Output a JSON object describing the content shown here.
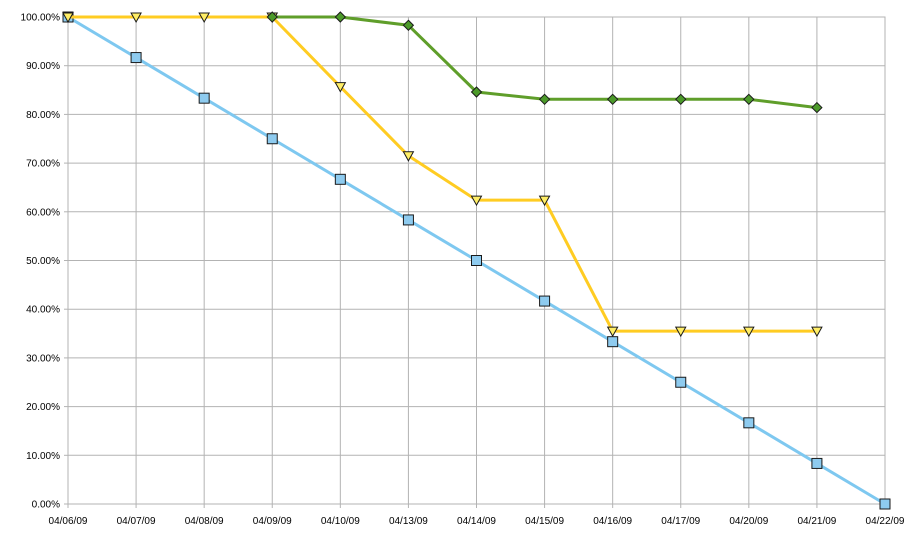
{
  "chart_data": {
    "type": "line",
    "title": "",
    "xlabel": "",
    "ylabel": "",
    "ylim": [
      0,
      100
    ],
    "y_ticks": [
      "0.00%",
      "10.00%",
      "20.00%",
      "30.00%",
      "40.00%",
      "50.00%",
      "60.00%",
      "70.00%",
      "80.00%",
      "90.00%",
      "100.00%"
    ],
    "categories": [
      "04/06/09",
      "04/07/09",
      "04/08/09",
      "04/09/09",
      "04/10/09",
      "04/13/09",
      "04/14/09",
      "04/15/09",
      "04/16/09",
      "04/17/09",
      "04/20/09",
      "04/21/09",
      "04/22/09"
    ],
    "grid": true,
    "legend": "none",
    "series": [
      {
        "color": "#7ec8f0",
        "marker": "square",
        "marker_fill": "#8ecbef",
        "values": [
          100,
          91.67,
          83.33,
          75,
          66.67,
          58.33,
          50,
          41.67,
          33.33,
          25,
          16.67,
          8.33,
          0
        ]
      },
      {
        "color": "#ffcc22",
        "marker": "triangle-down",
        "marker_fill": "#ffee66",
        "values": [
          100,
          100,
          100,
          100,
          85.7,
          71.5,
          62.4,
          62.4,
          35.5,
          35.5,
          35.5,
          35.5,
          null
        ]
      },
      {
        "color": "#5f9e2a",
        "marker": "diamond",
        "marker_fill": "#4c9a2a",
        "values": [
          null,
          null,
          null,
          100,
          100,
          98.3,
          84.6,
          83.1,
          83.1,
          83.1,
          83.1,
          81.4,
          null
        ]
      }
    ]
  }
}
